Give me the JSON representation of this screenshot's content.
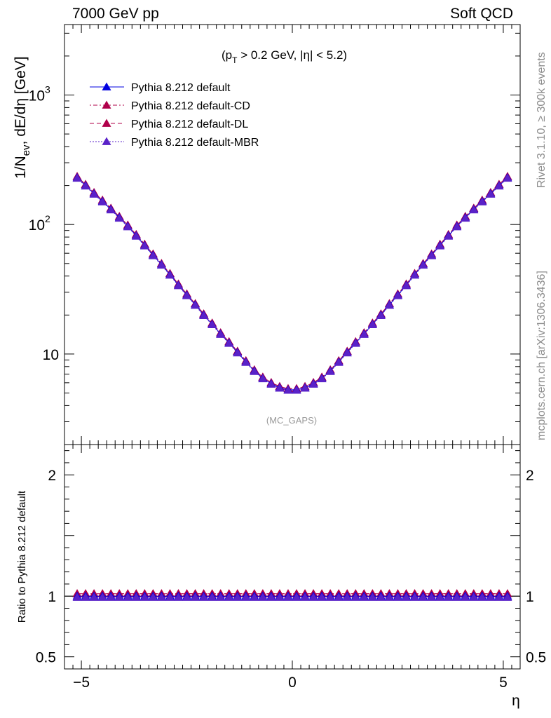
{
  "header": {
    "left": "7000 GeV pp",
    "right": "Soft QCD"
  },
  "side_labels": {
    "rivet": "Rivet 3.1.10, ≥ 300k events",
    "source": "mcplots.cern.ch [arXiv:1306.3436]"
  },
  "chart_data": [
    {
      "type": "line",
      "panel": "main",
      "ylabel": "1/N_ev, dE/dη [GeV]",
      "ylabel_parts": {
        "pre": "1/N",
        "sub": "ev",
        "post": ", dE/dη [GeV]"
      },
      "cut_label": {
        "p": "(p",
        "sub": "T",
        "rest": " > 0.2 GeV, |η| < 5.2)"
      },
      "watermark": "(MC_GAPS)",
      "y_log": true,
      "ylim": [
        2.0,
        3500
      ],
      "xlim": [
        -5.4,
        5.4
      ],
      "y_ticks": [
        {
          "value": 10,
          "label": "10"
        },
        {
          "value": 100,
          "label": "10",
          "exp": "2"
        },
        {
          "value": 1000,
          "label": "10",
          "exp": "3"
        }
      ],
      "legend_position": "top-left",
      "x": [
        -5.1,
        -4.9,
        -4.7,
        -4.5,
        -4.3,
        -4.1,
        -3.9,
        -3.7,
        -3.5,
        -3.3,
        -3.1,
        -2.9,
        -2.7,
        -2.5,
        -2.3,
        -2.1,
        -1.9,
        -1.7,
        -1.5,
        -1.3,
        -1.1,
        -0.9,
        -0.7,
        -0.5,
        -0.3,
        -0.1,
        0.1,
        0.3,
        0.5,
        0.7,
        0.9,
        1.1,
        1.3,
        1.5,
        1.7,
        1.9,
        2.1,
        2.3,
        2.5,
        2.7,
        2.9,
        3.1,
        3.3,
        3.5,
        3.7,
        3.9,
        4.1,
        4.3,
        4.5,
        4.7,
        4.9,
        5.1
      ],
      "y": [
        230,
        200,
        173,
        151,
        131,
        113,
        97,
        82,
        69,
        58,
        49,
        41,
        34,
        28.5,
        24,
        20,
        17,
        14.3,
        12.2,
        10.3,
        8.7,
        7.4,
        6.5,
        5.9,
        5.5,
        5.3,
        5.3,
        5.5,
        5.9,
        6.5,
        7.4,
        8.7,
        10.3,
        12.2,
        14.3,
        17,
        20,
        24,
        28.5,
        34,
        41,
        49,
        58,
        69,
        82,
        97,
        113,
        131,
        151,
        173,
        200,
        230
      ],
      "series": [
        {
          "name": "Pythia 8.212 default",
          "color": "#0000e0",
          "dash": "",
          "scale": 1.0
        },
        {
          "name": "Pythia 8.212 default-CD",
          "color": "#b0004a",
          "dash": "2 3 6 3",
          "scale": 1.02
        },
        {
          "name": "Pythia 8.212 default-DL",
          "color": "#b0004a",
          "dash": "6 4",
          "scale": 1.02
        },
        {
          "name": "Pythia 8.212 default-MBR",
          "color": "#5a22c8",
          "dash": "2 2",
          "scale": 0.99
        }
      ]
    },
    {
      "type": "line",
      "panel": "ratio",
      "ylabel": "Ratio to Pythia 8.212 default",
      "xlabel": "η",
      "ylim": [
        0.4,
        2.25
      ],
      "y_ticks": [
        {
          "value": 0.5,
          "label": "0.5"
        },
        {
          "value": 1,
          "label": "1"
        },
        {
          "value": 2,
          "label": "2"
        }
      ],
      "x_ticks": [
        {
          "value": -5,
          "label": "−5"
        },
        {
          "value": 0,
          "label": "0"
        },
        {
          "value": 5,
          "label": "5"
        }
      ],
      "series": [
        {
          "name": "Pythia 8.212 default",
          "value": 1.0
        },
        {
          "name": "Pythia 8.212 default-CD",
          "value": 1.02
        },
        {
          "name": "Pythia 8.212 default-DL",
          "value": 1.02
        },
        {
          "name": "Pythia 8.212 default-MBR",
          "value": 0.99
        }
      ]
    }
  ]
}
